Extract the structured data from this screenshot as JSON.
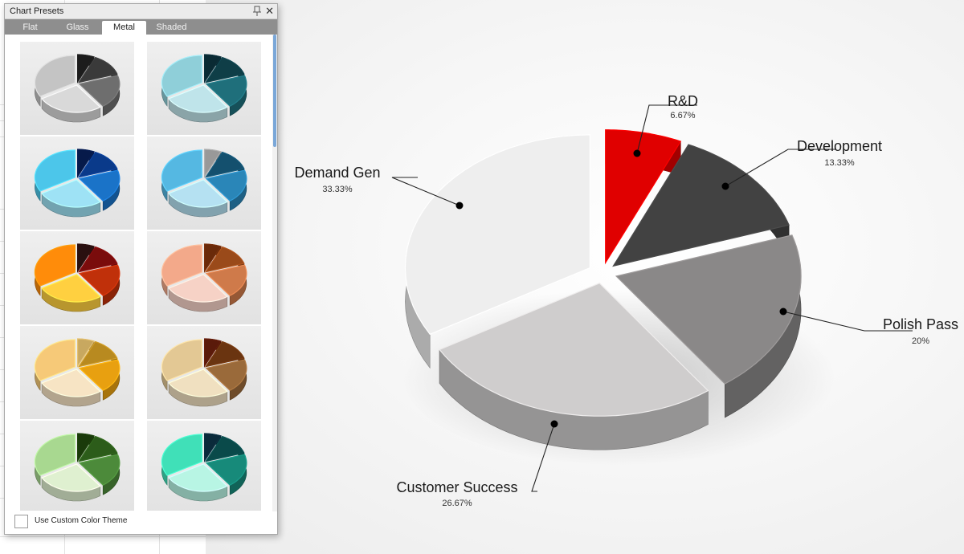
{
  "panel": {
    "title": "Chart Presets",
    "tabs": [
      "Flat",
      "Glass",
      "Metal",
      "Shaded"
    ],
    "active_tab": "Metal",
    "custom_theme_label": "Use Custom Color Theme",
    "custom_theme_checked": false,
    "presets": [
      {
        "theme": "silver",
        "colors": [
          "#1c1c1c",
          "#3a3a3a",
          "#6e6e6e",
          "#d9d9d9",
          "#c4c4c4"
        ]
      },
      {
        "theme": "teal-gray",
        "colors": [
          "#0a2a33",
          "#0f3e47",
          "#1f6f7b",
          "#bfe4ea",
          "#8fcfd9"
        ]
      },
      {
        "theme": "cyan-blue",
        "colors": [
          "#061a4a",
          "#0a3a8a",
          "#1a73c8",
          "#9ee2f5",
          "#4cc6ea"
        ]
      },
      {
        "theme": "steel-blue",
        "colors": [
          "#999999",
          "#14506e",
          "#2a86b8",
          "#b5e1f2",
          "#55b8e2"
        ]
      },
      {
        "theme": "fire",
        "colors": [
          "#2a1010",
          "#7a0c0c",
          "#c0300a",
          "#ffd040",
          "#ff8c0a"
        ]
      },
      {
        "theme": "copper-rose",
        "colors": [
          "#6a2a0a",
          "#9a4a1a",
          "#cf7a4a",
          "#f6d2c6",
          "#f3a98a"
        ]
      },
      {
        "theme": "gold-peach",
        "colors": [
          "#c8a860",
          "#b88a20",
          "#e8a010",
          "#f7e4c4",
          "#f6c978"
        ]
      },
      {
        "theme": "bronze",
        "colors": [
          "#5a1a0a",
          "#6a3410",
          "#9a6a3a",
          "#f0e0c0",
          "#e3c894"
        ]
      },
      {
        "theme": "green",
        "colors": [
          "#1a3a0a",
          "#2c5c1a",
          "#4c8a3a",
          "#dff0d0",
          "#a8d890"
        ]
      },
      {
        "theme": "mint-teal",
        "colors": [
          "#0a2a3a",
          "#0a4a4a",
          "#178a7a",
          "#b8f5e4",
          "#40e0b8"
        ]
      }
    ]
  },
  "chart_data": {
    "type": "pie",
    "style": "3d-metal",
    "exploded": true,
    "slices": [
      {
        "label": "R&D",
        "value": 6.67,
        "percent_label": "6.67%",
        "color": "#e00000"
      },
      {
        "label": "Development",
        "value": 13.33,
        "percent_label": "13.33%",
        "color": "#424242"
      },
      {
        "label": "Polish Pass",
        "value": 20,
        "percent_label": "20%",
        "color": "#8a8888"
      },
      {
        "label": "Customer Success",
        "value": 26.67,
        "percent_label": "26.67%",
        "color": "#cfcdcd"
      },
      {
        "label": "Demand Gen",
        "value": 33.33,
        "percent_label": "33.33%",
        "color": "#eeeeee"
      }
    ]
  }
}
